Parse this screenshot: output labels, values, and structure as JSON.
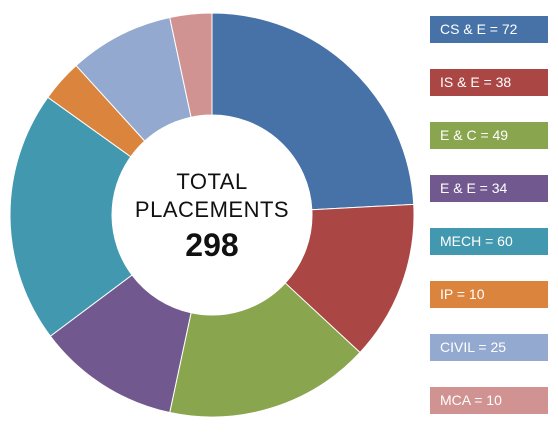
{
  "center": {
    "line1": "TOTAL",
    "line2": "PLACEMENTS",
    "total": "298"
  },
  "legend": [
    {
      "label": "CS & E = 72",
      "color": "#4672a8"
    },
    {
      "label": "IS & E = 38",
      "color": "#aa4643"
    },
    {
      "label": "E & C = 49",
      "color": "#89a54e"
    },
    {
      "label": "E & E = 34",
      "color": "#71588f"
    },
    {
      "label": "MECH = 60",
      "color": "#4198af"
    },
    {
      "label": "IP = 10",
      "color": "#db843d"
    },
    {
      "label": "CIVIL = 25",
      "color": "#93a9cf"
    },
    {
      "label": "MCA = 10",
      "color": "#d19392"
    }
  ],
  "chart_data": {
    "type": "pie",
    "donut": true,
    "categories": [
      "CS & E",
      "IS & E",
      "E & C",
      "E & E",
      "MECH",
      "IP",
      "CIVIL",
      "MCA"
    ],
    "values": [
      72,
      38,
      49,
      34,
      60,
      10,
      25,
      10
    ],
    "colors": [
      "#4672a8",
      "#aa4643",
      "#89a54e",
      "#71588f",
      "#4198af",
      "#db843d",
      "#93a9cf",
      "#d19392"
    ],
    "total": 298,
    "legend_position": "right"
  }
}
